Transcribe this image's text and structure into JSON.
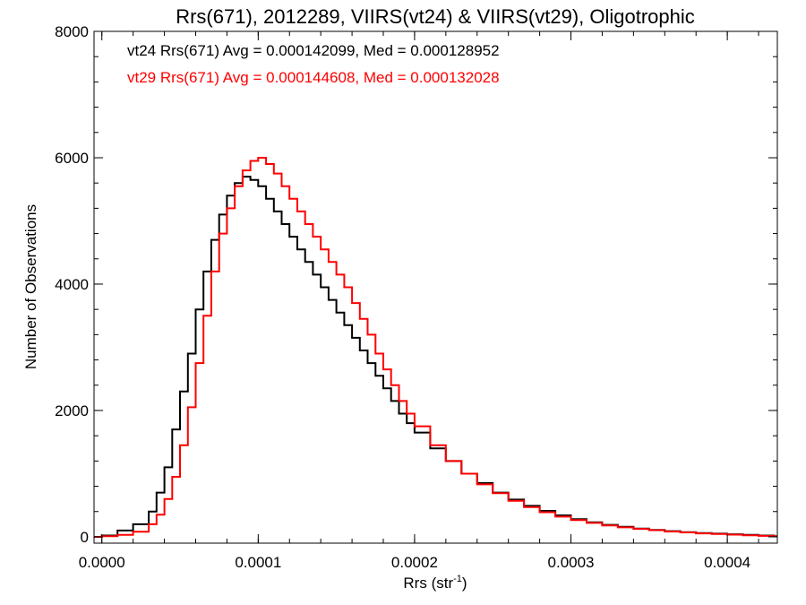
{
  "chart_data": {
    "type": "line",
    "title": "Rrs(671), 2012289, VIIRS(vt24) & VIIRS(vt29), Oligotrophic",
    "xlabel": "Rrs (str",
    "xlabel_sup": "-1",
    "xlabel_close": ")",
    "ylabel": "Number of Observations",
    "xlim": [
      -5e-06,
      0.000432
    ],
    "ylim": [
      -100,
      8000
    ],
    "xticks": [
      0.0,
      0.0001,
      0.0002,
      0.0003,
      0.0004
    ],
    "xtick_labels": [
      "0.0000",
      "0.0001",
      "0.0002",
      "0.0003",
      "0.0004"
    ],
    "yticks": [
      0,
      2000,
      4000,
      6000,
      8000
    ],
    "ytick_labels": [
      "0",
      "2000",
      "4000",
      "6000",
      "8000"
    ],
    "annotations": [
      "vt24 Rrs(671) Avg = 0.000142099, Med = 0.000128952",
      "vt29 Rrs(671) Avg = 0.000144608, Med = 0.000132028"
    ],
    "series": [
      {
        "color": "#000000",
        "step": true,
        "x": [
          -5e-06,
          0.0,
          1e-05,
          2e-05,
          3e-05,
          3.5e-05,
          4e-05,
          4.5e-05,
          5e-05,
          5.5e-05,
          6e-05,
          6.5e-05,
          7e-05,
          7.5e-05,
          8e-05,
          8.5e-05,
          9e-05,
          9.5e-05,
          0.0001,
          0.000105,
          0.00011,
          0.000115,
          0.00012,
          0.000125,
          0.00013,
          0.000135,
          0.00014,
          0.000145,
          0.00015,
          0.000155,
          0.00016,
          0.000165,
          0.00017,
          0.000175,
          0.00018,
          0.000185,
          0.00019,
          0.000195,
          0.0002,
          0.00021,
          0.00022,
          0.00023,
          0.00024,
          0.00025,
          0.00026,
          0.00027,
          0.00028,
          0.00029,
          0.0003,
          0.00031,
          0.00032,
          0.00033,
          0.00034,
          0.00035,
          0.00036,
          0.00037,
          0.00038,
          0.00039,
          0.0004,
          0.00041,
          0.00042,
          0.00043
        ],
        "y": [
          0,
          20,
          100,
          200,
          400,
          700,
          1100,
          1700,
          2300,
          2900,
          3600,
          4200,
          4700,
          5100,
          5400,
          5600,
          5700,
          5650,
          5550,
          5350,
          5150,
          4950,
          4750,
          4550,
          4350,
          4150,
          3950,
          3750,
          3550,
          3350,
          3150,
          2950,
          2750,
          2550,
          2350,
          2150,
          1950,
          1800,
          1650,
          1400,
          1200,
          1000,
          850,
          700,
          590,
          490,
          410,
          340,
          280,
          230,
          190,
          160,
          130,
          110,
          90,
          75,
          60,
          50,
          40,
          30,
          20,
          10
        ]
      },
      {
        "color": "#ff0000",
        "step": true,
        "x": [
          -5e-06,
          0.0,
          1e-05,
          2e-05,
          3e-05,
          3.5e-05,
          4e-05,
          4.5e-05,
          5e-05,
          5.5e-05,
          6e-05,
          6.5e-05,
          7e-05,
          7.5e-05,
          8e-05,
          8.5e-05,
          9e-05,
          9.5e-05,
          0.0001,
          0.000105,
          0.00011,
          0.000115,
          0.00012,
          0.000125,
          0.00013,
          0.000135,
          0.00014,
          0.000145,
          0.00015,
          0.000155,
          0.00016,
          0.000165,
          0.00017,
          0.000175,
          0.00018,
          0.000185,
          0.00019,
          0.000195,
          0.0002,
          0.00021,
          0.00022,
          0.00023,
          0.00024,
          0.00025,
          0.00026,
          0.00027,
          0.00028,
          0.00029,
          0.0003,
          0.00031,
          0.00032,
          0.00033,
          0.00034,
          0.00035,
          0.00036,
          0.00037,
          0.00038,
          0.00039,
          0.0004,
          0.00041,
          0.00042,
          0.00043
        ],
        "y": [
          0,
          10,
          30,
          80,
          200,
          350,
          600,
          950,
          1450,
          2050,
          2750,
          3500,
          4200,
          4800,
          5200,
          5550,
          5800,
          5950,
          6000,
          5900,
          5750,
          5550,
          5350,
          5150,
          4950,
          4750,
          4550,
          4350,
          4150,
          3950,
          3700,
          3450,
          3200,
          2900,
          2650,
          2400,
          2150,
          1950,
          1750,
          1450,
          1200,
          1000,
          830,
          690,
          570,
          470,
          390,
          320,
          265,
          220,
          180,
          150,
          125,
          105,
          85,
          70,
          55,
          45,
          35,
          25,
          15,
          8
        ]
      }
    ]
  }
}
